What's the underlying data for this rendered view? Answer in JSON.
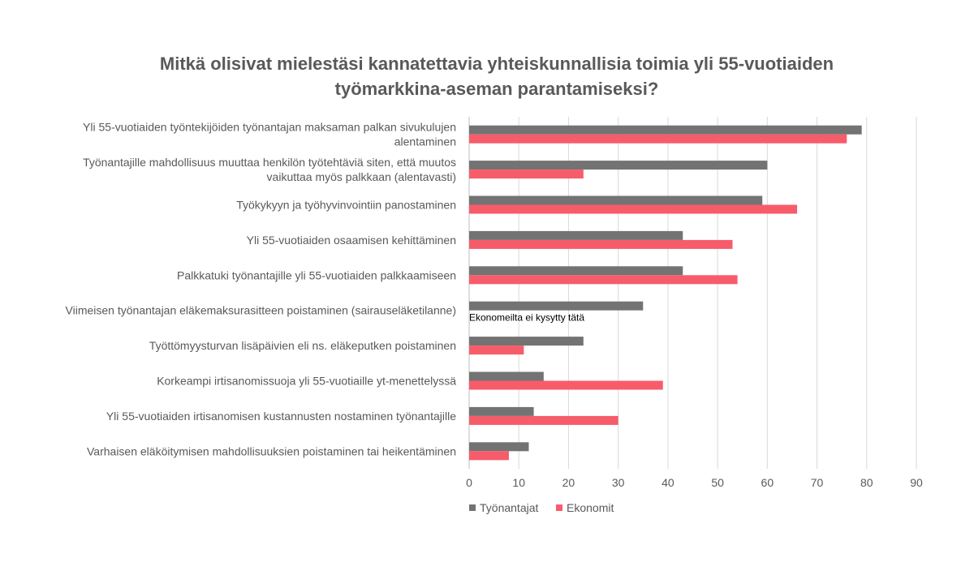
{
  "chart_data": {
    "type": "bar",
    "orientation": "horizontal",
    "title_line1": "Mitkä olisivat mielestäsi kannatettavia yhteiskunnallisia toimia yli 55-vuotiaiden",
    "title_line2": "työmarkkina-aseman parantamiseksi?",
    "categories": [
      [
        "Yli 55-vuotiaiden työntekijöiden työnantajan maksaman palkan sivukulujen",
        "alentaminen"
      ],
      [
        "Työnantajille mahdollisuus muuttaa henkilön työtehtäviä siten, että muutos",
        "vaikuttaa myös palkkaan (alentavasti)"
      ],
      [
        "Työkykyyn ja työhyvinvointiin panostaminen"
      ],
      [
        "Yli 55-vuotiaiden osaamisen kehittäminen"
      ],
      [
        "Palkkatuki työnantajille yli 55-vuotiaiden palkkaamiseen"
      ],
      [
        "Viimeisen työnantajan eläkemaksurasitteen poistaminen (sairauseläketilanne)"
      ],
      [
        "Työttömyysturvan lisäpäivien eli ns. eläkeputken poistaminen"
      ],
      [
        "Korkeampi irtisanomissuoja yli 55-vuotiaille yt-menettelyssä"
      ],
      [
        "Yli 55-vuotiaiden irtisanomisen kustannusten nostaminen työnantajille"
      ],
      [
        "Varhaisen eläköitymisen mahdollisuuksien poistaminen tai heikentäminen"
      ]
    ],
    "series": [
      {
        "name": "Työnantajat",
        "color": "#737373",
        "values": [
          79,
          60,
          59,
          43,
          43,
          35,
          23,
          15,
          13,
          12
        ]
      },
      {
        "name": "Ekonomit",
        "color": "#f75c6a",
        "values": [
          76,
          23,
          66,
          53,
          54,
          null,
          11,
          39,
          30,
          8
        ]
      }
    ],
    "xlim": [
      0,
      90
    ],
    "xticks": [
      0,
      10,
      20,
      30,
      40,
      50,
      60,
      70,
      80,
      90
    ],
    "grid": true,
    "legend_position": "bottom-left",
    "annotations": [
      {
        "category_index": 5,
        "text": "Ekonomeilta ei kysytty tätä"
      }
    ]
  }
}
